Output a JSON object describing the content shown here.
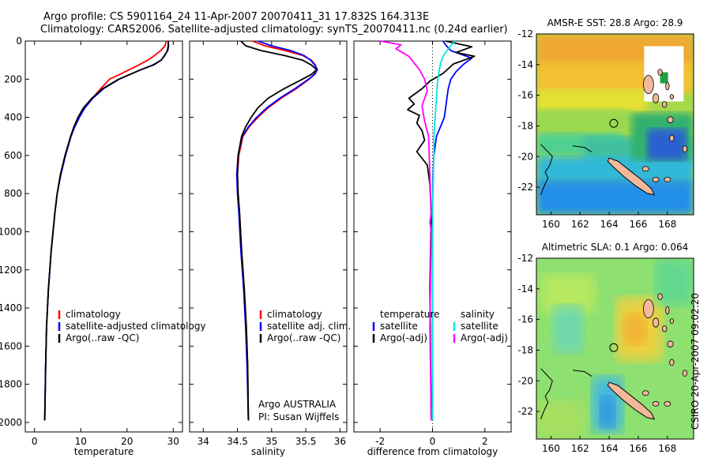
{
  "figure_title_line1": "Argo profile: CS 5901164_24 11-Apr-2007 20070411_31 17.832S 164.313E",
  "figure_title_line2": "Climatology: CARS2006. Satellite-adjusted climatology: synTS_20070411.nc (0.24d earlier)",
  "credit": "Argo AUSTRALIA",
  "pi": "PI: Susan Wijffels",
  "side_label": "CSIRO 20-Apr-2007 09:02:20",
  "colors": {
    "climatology": "#ff0000",
    "satellite": "#0000ff",
    "argo": "#000000",
    "sal_satellite": "#00e5e5",
    "sal_argo": "#ff00ff"
  },
  "chart_data": [
    {
      "type": "line",
      "xlabel": "temperature",
      "ylabel": "",
      "xlim": [
        -2,
        32
      ],
      "ylim": [
        2050,
        0
      ],
      "xticks": [
        0,
        10,
        20,
        30
      ],
      "yticks": [
        0,
        200,
        400,
        600,
        800,
        1000,
        1200,
        1400,
        1600,
        1800,
        2000
      ],
      "legend": [
        "climatology",
        "satellite-adjusted climatology",
        "Argo(..raw -QC)"
      ],
      "series": [
        {
          "name": "climatology",
          "color": "#ff0000",
          "x": [
            28.5,
            28.2,
            27.3,
            26.0,
            24.5,
            22.6,
            20.5,
            18.4,
            16.2,
            14.3,
            12.5,
            10.8,
            9.6,
            8.6,
            7.8,
            6.6,
            5.6,
            4.9,
            4.4,
            3.6,
            3.0,
            2.6,
            2.4,
            2.2
          ],
          "y": [
            0,
            25,
            50,
            75,
            100,
            125,
            150,
            175,
            200,
            250,
            300,
            350,
            400,
            450,
            500,
            600,
            700,
            800,
            900,
            1100,
            1300,
            1500,
            1700,
            1990
          ]
        },
        {
          "name": "satellite-adjusted climatology",
          "color": "#0000ff",
          "x": [
            28.9,
            28.9,
            28.7,
            28.2,
            27.4,
            25.6,
            23.1,
            20.6,
            18.3,
            14.9,
            12.6,
            10.9,
            9.7,
            8.7,
            7.9,
            6.7,
            5.7,
            4.9,
            4.4,
            3.6,
            3.0,
            2.6,
            2.4,
            2.2
          ],
          "y": [
            0,
            25,
            50,
            75,
            100,
            125,
            150,
            175,
            200,
            250,
            300,
            350,
            400,
            450,
            500,
            600,
            700,
            800,
            900,
            1100,
            1300,
            1500,
            1700,
            1990
          ]
        },
        {
          "name": "Argo(..raw -QC)",
          "color": "#000000",
          "x": [
            28.9,
            29.0,
            28.8,
            28.1,
            27.4,
            25.8,
            23.0,
            20.6,
            18.2,
            14.7,
            12.4,
            10.6,
            9.4,
            8.5,
            7.8,
            6.6,
            5.6,
            4.9,
            4.4,
            3.6,
            3.0,
            2.6,
            2.4,
            2.2
          ],
          "y": [
            0,
            25,
            50,
            75,
            100,
            125,
            150,
            175,
            200,
            250,
            300,
            350,
            400,
            450,
            500,
            600,
            700,
            800,
            900,
            1100,
            1300,
            1500,
            1700,
            1990
          ]
        }
      ]
    },
    {
      "type": "line",
      "xlabel": "salinity",
      "ylabel": "",
      "xlim": [
        33.8,
        36.1
      ],
      "ylim": [
        2050,
        0
      ],
      "xticks": [
        34,
        34.5,
        35,
        35.5,
        36
      ],
      "yticks": [],
      "legend": [
        "climatology",
        "satellite adj. clim.",
        "Argo(..raw -QC)"
      ],
      "series": [
        {
          "name": "climatology",
          "color": "#ff0000",
          "x": [
            34.72,
            34.9,
            35.2,
            35.45,
            35.58,
            35.64,
            35.66,
            35.62,
            35.55,
            35.36,
            35.14,
            34.95,
            34.8,
            34.67,
            34.58,
            34.52,
            34.5,
            34.51,
            34.53,
            34.56,
            34.6,
            34.63,
            34.65,
            34.66
          ],
          "y": [
            0,
            25,
            50,
            75,
            100,
            125,
            150,
            175,
            200,
            250,
            300,
            350,
            400,
            450,
            500,
            600,
            700,
            800,
            900,
            1100,
            1300,
            1500,
            1700,
            1990
          ]
        },
        {
          "name": "satellite adj. clim.",
          "color": "#0000ff",
          "x": [
            34.8,
            35.0,
            35.28,
            35.47,
            35.57,
            35.63,
            35.67,
            35.63,
            35.54,
            35.34,
            35.12,
            34.93,
            34.78,
            34.66,
            34.57,
            34.51,
            34.49,
            34.5,
            34.52,
            34.55,
            34.59,
            34.62,
            34.64,
            34.66
          ],
          "y": [
            0,
            25,
            50,
            75,
            100,
            125,
            150,
            175,
            200,
            250,
            300,
            350,
            400,
            450,
            500,
            600,
            700,
            800,
            900,
            1100,
            1300,
            1500,
            1700,
            1990
          ]
        },
        {
          "name": "Argo(..raw -QC)",
          "color": "#000000",
          "x": [
            34.55,
            34.62,
            34.85,
            35.18,
            35.45,
            35.58,
            35.66,
            35.58,
            35.45,
            35.18,
            34.95,
            34.8,
            34.7,
            34.62,
            34.56,
            34.51,
            34.5,
            34.51,
            34.53,
            34.56,
            34.6,
            34.63,
            34.65,
            34.66
          ],
          "y": [
            0,
            25,
            50,
            75,
            100,
            125,
            150,
            175,
            200,
            250,
            300,
            350,
            400,
            450,
            500,
            600,
            700,
            800,
            900,
            1100,
            1300,
            1500,
            1700,
            1990
          ]
        }
      ]
    },
    {
      "type": "line",
      "xlabel": "difference from climatology",
      "ylabel": "",
      "xlim": [
        -3,
        3
      ],
      "ylim": [
        2050,
        0
      ],
      "xticks": [
        -2,
        0,
        2
      ],
      "yticks": [],
      "legend": [
        "temperature",
        "satellite",
        "Argo(-adj)",
        "salinity",
        "satellite",
        "Argo(-adj)"
      ],
      "series": [
        {
          "name": "temperature satellite",
          "color": "#0000ff",
          "x": [
            0.4,
            0.5,
            0.7,
            1.5,
            1.2,
            0.9,
            0.7,
            0.6,
            0.55,
            0.5,
            0.45,
            0.3,
            0.15,
            0.05,
            0.02,
            0.0,
            0.0,
            0.0
          ],
          "y": [
            0,
            20,
            50,
            90,
            120,
            160,
            200,
            250,
            300,
            350,
            400,
            450,
            500,
            600,
            700,
            900,
            1300,
            1980
          ]
        },
        {
          "name": "temperature Argo(-adj)",
          "color": "#000000",
          "x": [
            0.5,
            1.5,
            0.9,
            1.6,
            0.8,
            0.4,
            -0.1,
            -0.4,
            -0.9,
            -0.7,
            -0.95,
            -0.5,
            -0.6,
            -0.4,
            -0.3,
            -0.6,
            -0.2,
            -0.1,
            -0.05,
            -0.1,
            -0.05
          ],
          "y": [
            0,
            30,
            60,
            80,
            120,
            170,
            210,
            250,
            300,
            330,
            360,
            390,
            430,
            470,
            520,
            580,
            650,
            750,
            900,
            1300,
            1980
          ]
        },
        {
          "name": "salinity satellite",
          "color": "#00e5e5",
          "x": [
            0.85,
            0.6,
            0.4,
            0.3,
            0.2,
            0.15,
            0.1,
            0.05,
            0.05,
            0.0,
            0.0
          ],
          "y": [
            0,
            40,
            80,
            120,
            200,
            300,
            400,
            500,
            600,
            900,
            1990
          ]
        },
        {
          "name": "salinity Argo(-adj)",
          "color": "#ff00ff",
          "x": [
            -2.0,
            -1.2,
            -1.4,
            -0.9,
            -0.5,
            -0.3,
            -0.2,
            -0.4,
            -0.3,
            -0.15,
            -0.1,
            -0.05,
            -0.1,
            -0.05,
            -0.1,
            -0.05
          ],
          "y": [
            0,
            20,
            40,
            80,
            150,
            200,
            260,
            340,
            420,
            500,
            700,
            900,
            950,
            1000,
            1500,
            1990
          ]
        }
      ]
    },
    {
      "type": "heatmap",
      "title": "AMSR-E SST: 28.8 Argo: 28.9",
      "xlabel": "",
      "ylabel": "",
      "xlim": [
        159,
        169.8
      ],
      "ylim": [
        -23.8,
        -12
      ],
      "xticks": [
        160,
        162,
        164,
        166,
        168
      ],
      "yticks": [
        -12,
        -14,
        -16,
        -18,
        -20,
        -22
      ],
      "xtick_labels": [
        "160",
        "162",
        "164",
        "166",
        "168"
      ],
      "ytick_labels": [
        "-12",
        "-14",
        "-16",
        "-18",
        "-20",
        "-22"
      ],
      "float_position": [
        164.313,
        -17.832
      ]
    },
    {
      "type": "heatmap",
      "title": "Altimetric SLA: 0.1 Argo: 0.064",
      "xlabel": "",
      "ylabel": "",
      "xlim": [
        159,
        169.8
      ],
      "ylim": [
        -23.8,
        -12
      ],
      "xticks": [
        160,
        162,
        164,
        166,
        168
      ],
      "yticks": [
        -12,
        -14,
        -16,
        -18,
        -20,
        -22
      ],
      "xtick_labels": [
        "160",
        "162",
        "164",
        "166",
        "168"
      ],
      "ytick_labels": [
        "-12",
        "-14",
        "-16",
        "-18",
        "-20",
        "-22"
      ],
      "float_position": [
        164.313,
        -17.832
      ]
    }
  ]
}
